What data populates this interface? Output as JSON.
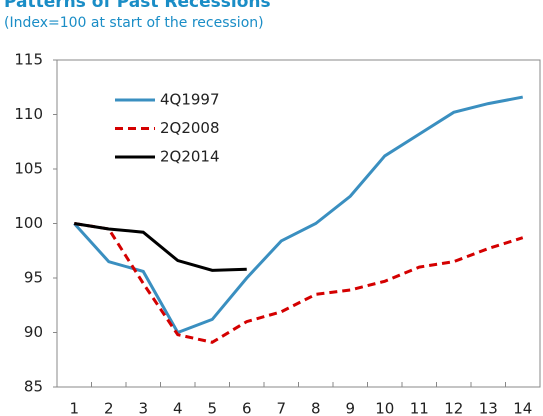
{
  "chart_data": {
    "type": "line",
    "title": "Patterns of Past Recessions",
    "subtitle": "(Index=100 at start of the recession)",
    "categories": [
      "1",
      "2",
      "3",
      "4",
      "5",
      "6",
      "7",
      "8",
      "9",
      "10",
      "11",
      "12",
      "13",
      "14"
    ],
    "series": [
      {
        "name": "4Q1997",
        "color": "#3a8fc0",
        "style": "solid",
        "values": [
          100,
          96.5,
          95.6,
          90,
          91.2,
          95,
          98.4,
          100,
          102.5,
          106.2,
          108.2,
          110.2,
          111,
          111.6
        ]
      },
      {
        "name": "2Q2008",
        "color": "#d40000",
        "style": "dashed",
        "values": [
          100,
          99.5,
          94.5,
          89.8,
          89.1,
          91,
          91.9,
          93.5,
          93.9,
          94.7,
          96,
          96.5,
          97.7,
          98.7
        ]
      },
      {
        "name": "2Q2014",
        "color": "#000000",
        "style": "solid",
        "values": [
          100,
          99.5,
          99.2,
          96.6,
          95.7,
          95.8,
          null,
          null,
          null,
          null,
          null,
          null,
          null,
          null
        ]
      }
    ],
    "ylim": [
      85,
      115
    ],
    "yticks": [
      85,
      90,
      95,
      100,
      105,
      110,
      115
    ],
    "grid": false
  }
}
